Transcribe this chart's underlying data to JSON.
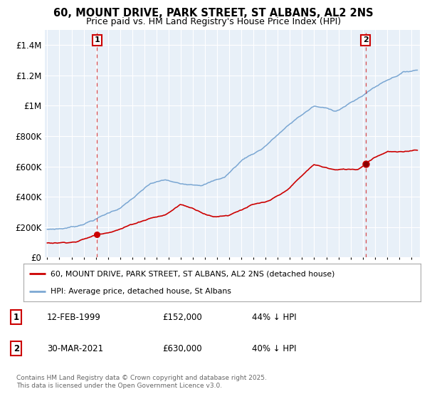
{
  "title": "60, MOUNT DRIVE, PARK STREET, ST ALBANS, AL2 2NS",
  "subtitle": "Price paid vs. HM Land Registry's House Price Index (HPI)",
  "title_fontsize": 10.5,
  "subtitle_fontsize": 9,
  "bg_color": "#ffffff",
  "plot_bg_color": "#e8f0f8",
  "grid_color": "#ffffff",
  "red_color": "#cc0000",
  "blue_color": "#6699cc",
  "marker1_year": 1999.12,
  "marker2_year": 2021.25,
  "legend1": "60, MOUNT DRIVE, PARK STREET, ST ALBANS, AL2 2NS (detached house)",
  "legend2": "HPI: Average price, detached house, St Albans",
  "footer": "Contains HM Land Registry data © Crown copyright and database right 2025.\nThis data is licensed under the Open Government Licence v3.0.",
  "ylim": [
    0,
    1500000
  ],
  "yticks": [
    0,
    200000,
    400000,
    600000,
    800000,
    1000000,
    1200000,
    1400000
  ],
  "ytick_labels": [
    "£0",
    "£200K",
    "£400K",
    "£600K",
    "£800K",
    "£1M",
    "£1.2M",
    "£1.4M"
  ],
  "xstart": 1995,
  "xend": 2025,
  "hpi_waypoints_x": [
    0.0,
    0.04,
    0.08,
    0.13,
    0.2,
    0.28,
    0.32,
    0.36,
    0.42,
    0.48,
    0.53,
    0.58,
    0.63,
    0.68,
    0.72,
    0.78,
    0.84,
    0.88,
    0.92,
    0.96,
    1.0
  ],
  "hpi_waypoints_y": [
    185000,
    192000,
    210000,
    260000,
    340000,
    490000,
    510000,
    480000,
    490000,
    540000,
    660000,
    730000,
    840000,
    940000,
    1010000,
    980000,
    1060000,
    1130000,
    1190000,
    1240000,
    1260000
  ],
  "red_waypoints_x": [
    0.0,
    0.04,
    0.08,
    0.13,
    0.2,
    0.28,
    0.32,
    0.36,
    0.4,
    0.45,
    0.49,
    0.55,
    0.6,
    0.64,
    0.68,
    0.72,
    0.78,
    0.84,
    0.88,
    0.92,
    0.96,
    1.0
  ],
  "red_waypoints_y": [
    95000,
    100000,
    112000,
    152000,
    205000,
    280000,
    300000,
    370000,
    340000,
    295000,
    310000,
    380000,
    400000,
    450000,
    540000,
    630000,
    595000,
    600000,
    680000,
    730000,
    720000,
    740000
  ]
}
